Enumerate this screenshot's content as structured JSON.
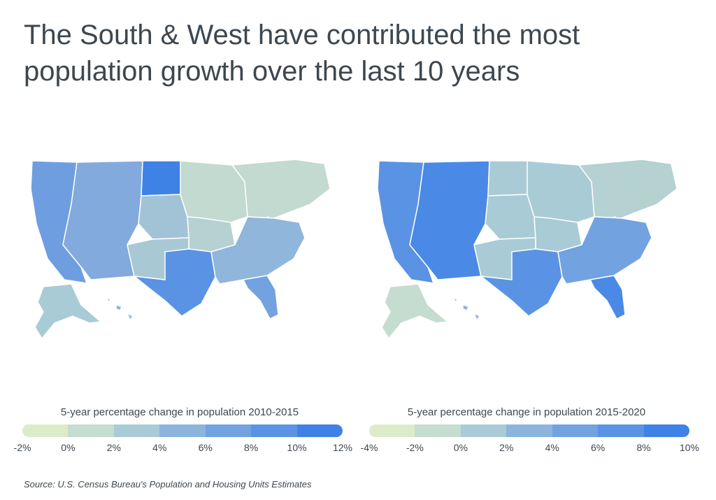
{
  "title": {
    "line1": "The South & West have contributed the most",
    "line2": "population growth over the last 10 years"
  },
  "maps": [
    {
      "legend_title": "5-year percentage change in population 2010-2015",
      "legend_colors": [
        "#deebc8",
        "#c5dcd0",
        "#a9cbd6",
        "#8db4dd",
        "#72a2e0",
        "#5a93e3",
        "#3f82e6"
      ],
      "ticks": [
        "-2%",
        "0%",
        "2%",
        "4%",
        "6%",
        "8%",
        "10%",
        "12%"
      ],
      "fills": {
        "pacific": "#6f9ee0",
        "mountain": "#83aadc",
        "plains": "#a2c3d6",
        "dakota": "#3f82e6",
        "central": "#b5d1d2",
        "midwest": "#c2dad0",
        "northeast": "#c2dad0",
        "southwest": "#a8c8d4",
        "texas": "#5a93e3",
        "southeast": "#90b6dc",
        "florida": "#72a2e0",
        "alaska": "#a9cbd6",
        "hawaii": "#90b6dc",
        "wv": "#deebc8"
      }
    },
    {
      "legend_title": "5-year percentage change in population 2015-2020",
      "legend_colors": [
        "#deebc8",
        "#c5dcd0",
        "#a9cbd6",
        "#8db4dd",
        "#72a2e0",
        "#5a93e3",
        "#3f82e6"
      ],
      "ticks": [
        "-4%",
        "-2%",
        "0%",
        "2%",
        "4%",
        "6%",
        "8%",
        "10%"
      ],
      "fills": {
        "pacific": "#5a93e3",
        "mountain": "#4a89e5",
        "plains": "#a9cbd6",
        "dakota": "#a9cbd6",
        "central": "#a9cbd6",
        "midwest": "#a9cbd6",
        "northeast": "#b5d1d2",
        "southwest": "#a9cbd6",
        "texas": "#5a93e3",
        "southeast": "#72a2e0",
        "florida": "#4a89e5",
        "alaska": "#c5dcd0",
        "hawaii": "#8db4dd",
        "wv": "#deebc8"
      }
    }
  ],
  "source": "Source:  U.S. Census Bureau's Population and Housing Units Estimates"
}
